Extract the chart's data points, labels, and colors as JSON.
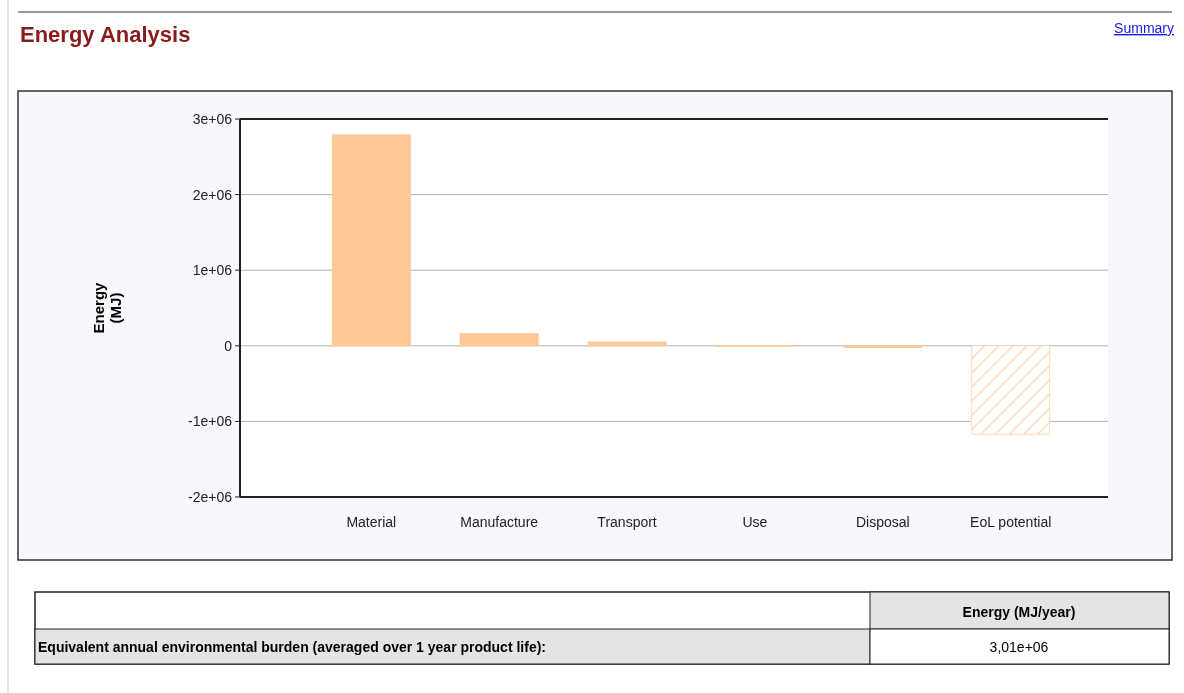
{
  "chart_data": {
    "type": "bar",
    "title": "Energy Analysis",
    "ylabel": "Energy\n(MJ)",
    "categories": [
      "Material",
      "Manufacture",
      "Transport",
      "Use",
      "Disposal",
      "EoL potential"
    ],
    "values": [
      2790000,
      160000,
      50000,
      0,
      -20000,
      -1170000
    ],
    "colors": [
      "#ffc896",
      "#ffc896",
      "#ffc896",
      "#ffc896",
      "#ffc896",
      "#fdd9b5"
    ],
    "ylim": [
      -2000000,
      3000000
    ],
    "yticks": [
      {
        "value": -2000000,
        "label": "-2e+06"
      },
      {
        "value": -1000000,
        "label": "-1e+06"
      },
      0,
      {
        "value": 1000000,
        "label": "1e+06"
      },
      {
        "value": 2000000,
        "label": "2e+06"
      },
      {
        "value": 3000000,
        "label": "3e+06"
      }
    ],
    "grid": "y",
    "annotations": [
      "Summary",
      "Energy (MJ/year)",
      "Equivalent annual environmental burden (averaged over 1 year product life):",
      "3,01e+06"
    ]
  }
}
